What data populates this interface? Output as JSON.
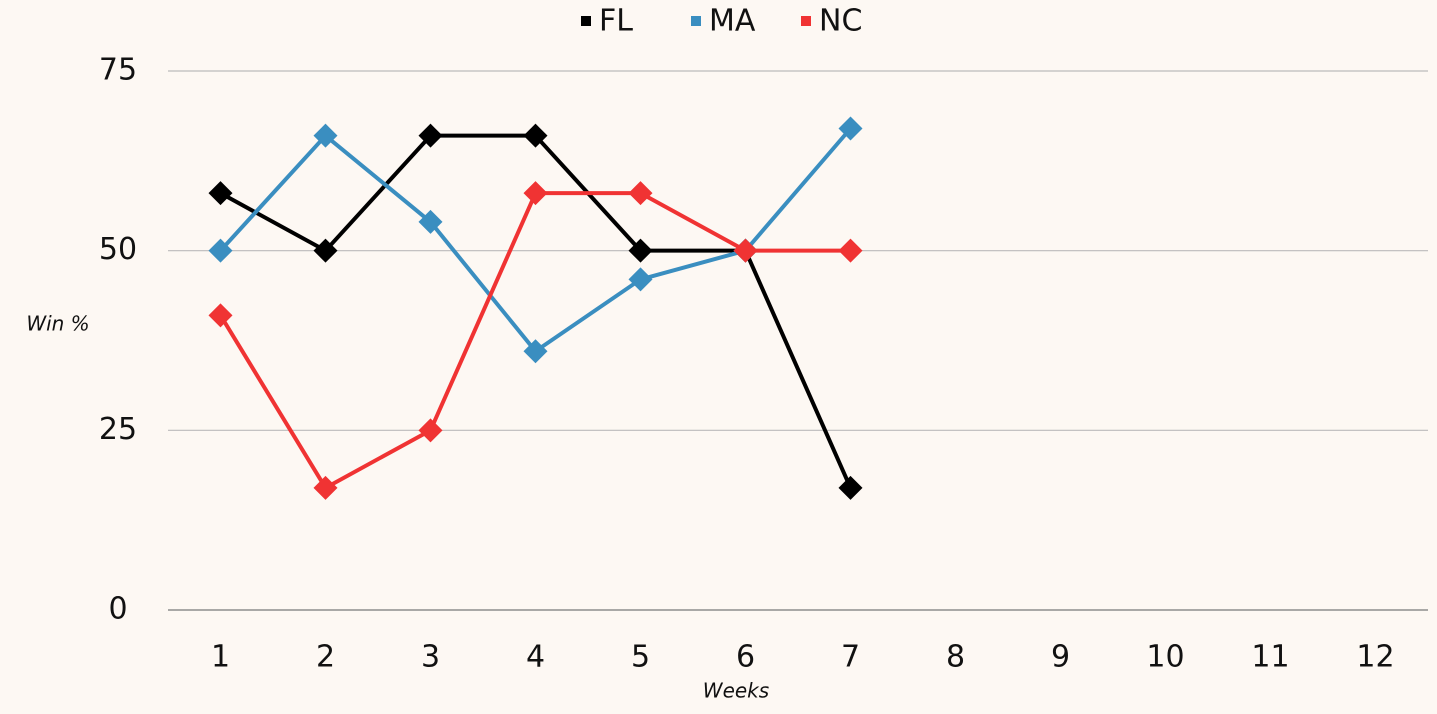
{
  "chart_data": {
    "type": "line",
    "ylabel": "Win %",
    "xlabel": "Weeks",
    "categories": [
      "1",
      "2",
      "3",
      "4",
      "5",
      "6",
      "7",
      "8",
      "9",
      "10",
      "11",
      "12"
    ],
    "series": [
      {
        "name": "FL",
        "color": "#000000",
        "values": [
          58,
          50,
          66,
          66,
          50,
          50,
          17,
          null,
          null,
          null,
          null,
          null
        ]
      },
      {
        "name": "MA",
        "color": "#3a8ec0",
        "values": [
          50,
          66,
          54,
          36,
          46,
          50,
          67,
          null,
          null,
          null,
          null,
          null
        ]
      },
      {
        "name": "NC",
        "color": "#f03333",
        "values": [
          41,
          17,
          25,
          58,
          58,
          50,
          50,
          null,
          null,
          null,
          null,
          null
        ]
      }
    ],
    "ylim": [
      0,
      75
    ],
    "yticks": [
      0,
      25,
      50,
      75
    ],
    "grid": true,
    "legend": "top"
  }
}
